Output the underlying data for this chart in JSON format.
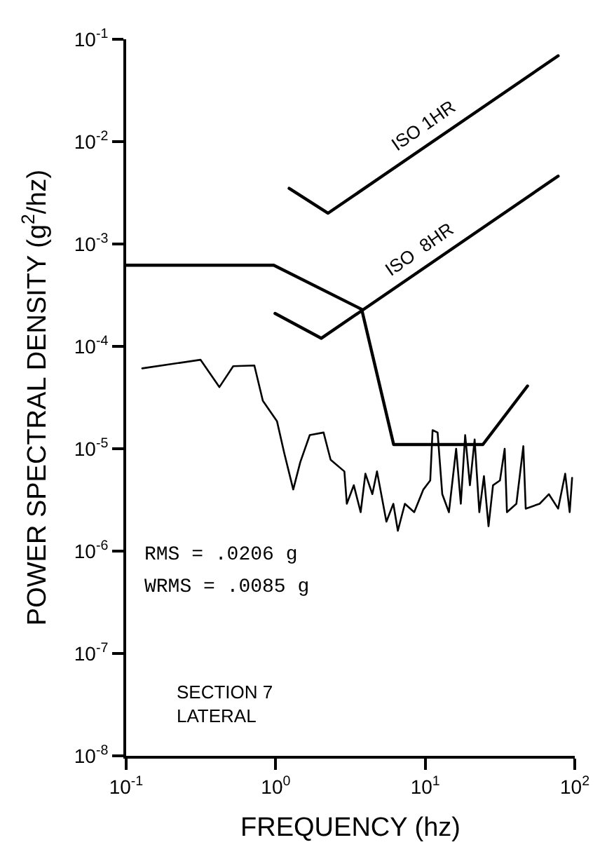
{
  "chart_data": {
    "type": "line",
    "xlabel": "FREQUENCY (hz)",
    "ylabel": "POWER SPECTRAL DENSITY (g$^{2}$/hz)",
    "log": "xy",
    "grid": false,
    "legend": false,
    "marker": "none",
    "line_style": "solid",
    "xlim": [
      0.1,
      100
    ],
    "ylim": [
      1e-08,
      0.1
    ],
    "xticks": [
      {
        "value": 0.1,
        "label": "10$^{-1}$"
      },
      {
        "value": 1,
        "label": "10$^{0}$"
      },
      {
        "value": 10,
        "label": "10$^{1}$"
      },
      {
        "value": 100,
        "label": "10$^{2}$"
      }
    ],
    "yticks": [
      {
        "value": 1e-08,
        "label": "10$^{-8}$"
      },
      {
        "value": 1e-07,
        "label": "10$^{-7}$"
      },
      {
        "value": 1e-06,
        "label": "10$^{-6}$"
      },
      {
        "value": 1e-05,
        "label": "10$^{-5}$"
      },
      {
        "value": 0.0001,
        "label": "10$^{-4}$"
      },
      {
        "value": 0.001,
        "label": "10$^{-3}$"
      },
      {
        "value": 0.01,
        "label": "10$^{-2}$"
      },
      {
        "value": 0.1,
        "label": "10$^{-1}$"
      }
    ],
    "series": [
      {
        "name": "ISO 1HR",
        "color": "#000000",
        "x": [
          1.23,
          2.24,
          77.4
        ],
        "values": [
          0.0035,
          0.002,
          0.069
        ]
      },
      {
        "name": "ISO  8HR",
        "color": "#000000",
        "x": [
          0.99,
          2.02,
          77.4
        ],
        "values": [
          0.00021,
          0.00012,
          0.0046
        ]
      },
      {
        "color": "#000000",
        "x": [
          0.1,
          0.97,
          3.76,
          6.15,
          24.3,
          48.3
        ],
        "values": [
          0.00062,
          0.00062,
          0.00023,
          1.1e-05,
          1.1e-05,
          4.1e-05
        ]
      },
      {
        "color": "#000000",
        "x": [
          0.128,
          0.314,
          0.42,
          0.52,
          0.72,
          0.82,
          1.02,
          1.14,
          1.31,
          1.46,
          1.69,
          2.09,
          2.33,
          2.88,
          2.99,
          3.33,
          3.7,
          3.98,
          4.43,
          4.76,
          5.5,
          6.12,
          6.56,
          7.31,
          8.44,
          9.72,
          10.8,
          11.2,
          12.1,
          13.0,
          14.4,
          16.1,
          17.3,
          18.5,
          19.9,
          21.4,
          23.0,
          24.7,
          26.5,
          28.4,
          31.6,
          34.0,
          35.2,
          40.7,
          45.3,
          47.0,
          58.2,
          67.1,
          77.4,
          86.3,
          92.5,
          96.0
        ],
        "values": [
          6.1e-05,
          7.4e-05,
          4e-05,
          6.4e-05,
          6.5e-05,
          2.95e-05,
          1.86e-05,
          9.1e-06,
          4e-06,
          7.4e-06,
          1.36e-05,
          1.44e-05,
          7.8e-06,
          6e-06,
          2.9e-06,
          4.4e-06,
          2.4e-06,
          5.7e-06,
          3.6e-06,
          6e-06,
          1.94e-06,
          2.9e-06,
          1.58e-06,
          2.9e-06,
          2.4e-06,
          4e-06,
          4.9e-06,
          1.52e-05,
          1.44e-05,
          3.6e-06,
          2.4e-06,
          1e-05,
          2.9e-06,
          1.36e-05,
          4.4e-06,
          1.23e-05,
          2.4e-06,
          5.4e-06,
          1.75e-06,
          4.4e-06,
          4.9e-06,
          1e-05,
          2.4e-06,
          2.9e-06,
          1.06e-05,
          2.6e-06,
          2.9e-06,
          3.6e-06,
          2.6e-06,
          5.7e-06,
          2.4e-06,
          5.2e-06
        ]
      }
    ],
    "annotations": [
      "RMS = .0206 g",
      "WRMS = .0085 g",
      "SECTION 7",
      "LATERAL"
    ]
  }
}
